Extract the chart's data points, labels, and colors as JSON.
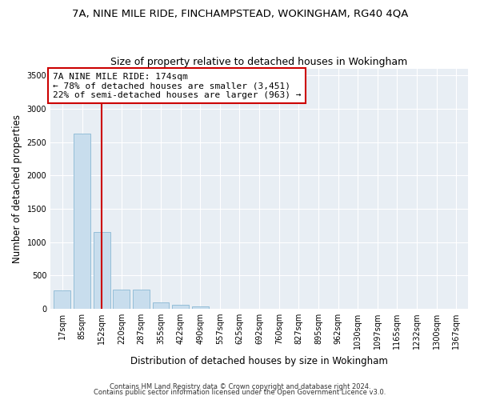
{
  "title": "7A, NINE MILE RIDE, FINCHAMPSTEAD, WOKINGHAM, RG40 4QA",
  "subtitle": "Size of property relative to detached houses in Wokingham",
  "xlabel": "Distribution of detached houses by size in Wokingham",
  "ylabel": "Number of detached properties",
  "categories": [
    "17sqm",
    "85sqm",
    "152sqm",
    "220sqm",
    "287sqm",
    "355sqm",
    "422sqm",
    "490sqm",
    "557sqm",
    "625sqm",
    "692sqm",
    "760sqm",
    "827sqm",
    "895sqm",
    "962sqm",
    "1030sqm",
    "1097sqm",
    "1165sqm",
    "1232sqm",
    "1300sqm",
    "1367sqm"
  ],
  "values": [
    270,
    2630,
    1155,
    285,
    285,
    90,
    55,
    38,
    0,
    0,
    0,
    0,
    0,
    0,
    0,
    0,
    0,
    0,
    0,
    0,
    0
  ],
  "bar_color": "#c8dded",
  "bar_edge_color": "#8ab8d4",
  "vline_x": 2,
  "vline_color": "#cc0000",
  "annotation_text": "7A NINE MILE RIDE: 174sqm\n← 78% of detached houses are smaller (3,451)\n22% of semi-detached houses are larger (963) →",
  "annotation_box_color": "#ffffff",
  "annotation_box_edge": "#cc0000",
  "ylim": [
    0,
    3600
  ],
  "yticks": [
    0,
    500,
    1000,
    1500,
    2000,
    2500,
    3000,
    3500
  ],
  "footer1": "Contains HM Land Registry data © Crown copyright and database right 2024.",
  "footer2": "Contains public sector information licensed under the Open Government Licence v3.0.",
  "bg_color": "#ffffff",
  "plot_bg_color": "#e8eef4",
  "title_fontsize": 9.5,
  "subtitle_fontsize": 9,
  "axis_label_fontsize": 8.5,
  "tick_fontsize": 7,
  "annotation_fontsize": 8,
  "footer_fontsize": 6
}
